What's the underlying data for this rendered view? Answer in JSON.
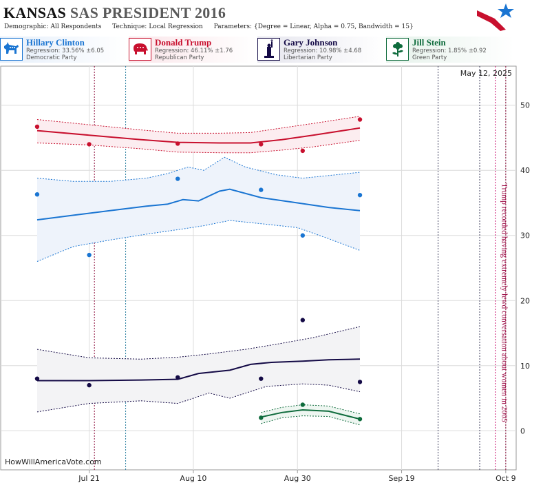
{
  "header": {
    "state": "KANSAS",
    "race": "SAS PRESIDENT 2016",
    "params": [
      {
        "key": "Demographic:",
        "value": "All Respondents"
      },
      {
        "key": "Technique:",
        "value": "Local Regression"
      },
      {
        "key": "Parameters:",
        "value": "{Degree = Linear, Alpha = 0.75, Bandwidth = 15}"
      }
    ]
  },
  "candidates": [
    {
      "name": "Hillary Clinton",
      "regression": "Regression: 33.56% ±6.05",
      "party": "Democratic Party",
      "color": "#1a75d2",
      "icon": "donkey-icon"
    },
    {
      "name": "Donald Trump",
      "regression": "Regression: 46.11% ±1.76",
      "party": "Republican Party",
      "color": "#c8102e",
      "icon": "elephant-icon"
    },
    {
      "name": "Gary Johnson",
      "regression": "Regression: 10.98% ±4.68",
      "party": "Libertarian Party",
      "color": "#140a46",
      "icon": "liberty-statue-icon"
    },
    {
      "name": "Jill Stein",
      "regression": "Regression: 1.85% ±0.92",
      "party": "Green Party",
      "color": "#0e6b3c",
      "icon": "flower-icon"
    }
  ],
  "chart_data": {
    "type": "line",
    "date_label": "May 12, 2025",
    "watermark": "HowWillAmericaVote.com",
    "annotation": "Trump recorded having extremely lewd conversation about women in 2005",
    "x_ticks": [
      {
        "date": "2016-07-21",
        "label": "Jul 21"
      },
      {
        "date": "2016-08-10",
        "label": "Aug 10"
      },
      {
        "date": "2016-08-30",
        "label": "Aug 30"
      },
      {
        "date": "2016-09-19",
        "label": "Sep 19"
      },
      {
        "date": "2016-10-09",
        "label": "Oct 9"
      }
    ],
    "xlim": [
      "2016-07-04",
      "2016-10-11"
    ],
    "ylim": [
      -6,
      56
    ],
    "y_ticks": [
      0,
      10,
      20,
      30,
      40,
      50
    ],
    "grid": true,
    "event_lines": [
      {
        "date": "2016-07-22",
        "color": "#8b0a3a"
      },
      {
        "date": "2016-07-28",
        "color": "#2a7fa0"
      },
      {
        "date": "2016-09-26",
        "color": "#3a3a5a"
      },
      {
        "date": "2016-10-04",
        "color": "#3a3a5a"
      },
      {
        "date": "2016-10-07",
        "color": "#c8106e"
      },
      {
        "date": "2016-10-09",
        "color": "#8b0a3a"
      }
    ],
    "series": [
      {
        "name": "Hillary Clinton",
        "color": "#1a75d2",
        "band_fill": "#eef3fb",
        "points": [
          [
            "2016-07-11",
            36.3
          ],
          [
            "2016-07-21",
            27.0
          ],
          [
            "2016-08-07",
            38.7
          ],
          [
            "2016-08-23",
            37.0
          ],
          [
            "2016-08-31",
            30.0
          ],
          [
            "2016-09-11",
            36.2
          ]
        ],
        "trend": [
          [
            "2016-07-11",
            32.4
          ],
          [
            "2016-07-18",
            33.1
          ],
          [
            "2016-07-25",
            33.8
          ],
          [
            "2016-08-01",
            34.5
          ],
          [
            "2016-08-05",
            34.8
          ],
          [
            "2016-08-08",
            35.5
          ],
          [
            "2016-08-11",
            35.3
          ],
          [
            "2016-08-15",
            36.8
          ],
          [
            "2016-08-17",
            37.1
          ],
          [
            "2016-08-23",
            35.8
          ],
          [
            "2016-08-30",
            35.0
          ],
          [
            "2016-09-05",
            34.3
          ],
          [
            "2016-09-11",
            33.8
          ]
        ],
        "upper": [
          [
            "2016-07-11",
            38.8
          ],
          [
            "2016-07-18",
            38.3
          ],
          [
            "2016-07-25",
            38.3
          ],
          [
            "2016-08-01",
            38.8
          ],
          [
            "2016-08-05",
            39.5
          ],
          [
            "2016-08-09",
            40.5
          ],
          [
            "2016-08-12",
            40.0
          ],
          [
            "2016-08-16",
            42.0
          ],
          [
            "2016-08-20",
            40.5
          ],
          [
            "2016-08-26",
            39.3
          ],
          [
            "2016-08-31",
            38.8
          ],
          [
            "2016-09-05",
            39.2
          ],
          [
            "2016-09-11",
            39.7
          ]
        ],
        "lower": [
          [
            "2016-07-11",
            26.0
          ],
          [
            "2016-07-18",
            28.3
          ],
          [
            "2016-07-25",
            29.3
          ],
          [
            "2016-08-01",
            30.2
          ],
          [
            "2016-08-08",
            31.0
          ],
          [
            "2016-08-12",
            31.5
          ],
          [
            "2016-08-17",
            32.3
          ],
          [
            "2016-08-23",
            31.8
          ],
          [
            "2016-08-30",
            31.2
          ],
          [
            "2016-09-05",
            29.5
          ],
          [
            "2016-09-11",
            27.7
          ]
        ]
      },
      {
        "name": "Donald Trump",
        "color": "#c8102e",
        "band_fill": "#fcedf0",
        "points": [
          [
            "2016-07-11",
            46.7
          ],
          [
            "2016-07-21",
            44.0
          ],
          [
            "2016-08-07",
            44.1
          ],
          [
            "2016-08-23",
            44.0
          ],
          [
            "2016-08-31",
            43.0
          ],
          [
            "2016-09-11",
            47.8
          ]
        ],
        "trend": [
          [
            "2016-07-11",
            46.1
          ],
          [
            "2016-07-21",
            45.4
          ],
          [
            "2016-07-31",
            44.7
          ],
          [
            "2016-08-07",
            44.3
          ],
          [
            "2016-08-15",
            44.2
          ],
          [
            "2016-08-21",
            44.2
          ],
          [
            "2016-08-27",
            44.7
          ],
          [
            "2016-09-02",
            45.4
          ],
          [
            "2016-09-11",
            46.5
          ]
        ],
        "upper": [
          [
            "2016-07-11",
            47.8
          ],
          [
            "2016-07-21",
            47.0
          ],
          [
            "2016-07-31",
            46.2
          ],
          [
            "2016-08-07",
            45.7
          ],
          [
            "2016-08-15",
            45.7
          ],
          [
            "2016-08-21",
            45.8
          ],
          [
            "2016-08-27",
            46.5
          ],
          [
            "2016-09-02",
            47.2
          ],
          [
            "2016-09-11",
            48.3
          ]
        ],
        "lower": [
          [
            "2016-07-11",
            44.2
          ],
          [
            "2016-07-21",
            43.9
          ],
          [
            "2016-07-31",
            43.3
          ],
          [
            "2016-08-07",
            42.8
          ],
          [
            "2016-08-15",
            42.7
          ],
          [
            "2016-08-21",
            42.7
          ],
          [
            "2016-08-27",
            43.1
          ],
          [
            "2016-09-02",
            43.6
          ],
          [
            "2016-09-11",
            44.6
          ]
        ]
      },
      {
        "name": "Gary Johnson",
        "color": "#140a46",
        "band_fill": "#f3f3f5",
        "points": [
          [
            "2016-07-11",
            8.0
          ],
          [
            "2016-07-21",
            7.0
          ],
          [
            "2016-08-07",
            8.2
          ],
          [
            "2016-08-23",
            8.0
          ],
          [
            "2016-08-31",
            17.0
          ],
          [
            "2016-09-11",
            7.5
          ]
        ],
        "trend": [
          [
            "2016-07-11",
            7.7
          ],
          [
            "2016-07-21",
            7.7
          ],
          [
            "2016-07-31",
            7.8
          ],
          [
            "2016-08-07",
            7.9
          ],
          [
            "2016-08-11",
            8.8
          ],
          [
            "2016-08-17",
            9.3
          ],
          [
            "2016-08-21",
            10.2
          ],
          [
            "2016-08-25",
            10.5
          ],
          [
            "2016-08-31",
            10.7
          ],
          [
            "2016-09-05",
            10.9
          ],
          [
            "2016-09-11",
            11.0
          ]
        ],
        "upper": [
          [
            "2016-07-11",
            12.5
          ],
          [
            "2016-07-21",
            11.2
          ],
          [
            "2016-07-31",
            11.0
          ],
          [
            "2016-08-07",
            11.3
          ],
          [
            "2016-08-13",
            11.8
          ],
          [
            "2016-08-20",
            12.5
          ],
          [
            "2016-08-26",
            13.3
          ],
          [
            "2016-09-02",
            14.3
          ],
          [
            "2016-09-11",
            16.0
          ]
        ],
        "lower": [
          [
            "2016-07-11",
            2.9
          ],
          [
            "2016-07-21",
            4.2
          ],
          [
            "2016-07-31",
            4.6
          ],
          [
            "2016-08-07",
            4.2
          ],
          [
            "2016-08-13",
            5.8
          ],
          [
            "2016-08-17",
            5.0
          ],
          [
            "2016-08-24",
            6.8
          ],
          [
            "2016-08-31",
            7.2
          ],
          [
            "2016-09-05",
            7.0
          ],
          [
            "2016-09-11",
            6.0
          ]
        ]
      },
      {
        "name": "Jill Stein",
        "color": "#0e6b3c",
        "band_fill": "#eef6f1",
        "points": [
          [
            "2016-08-23",
            2.0
          ],
          [
            "2016-08-31",
            4.0
          ],
          [
            "2016-09-11",
            1.8
          ]
        ],
        "trend": [
          [
            "2016-08-23",
            2.1
          ],
          [
            "2016-08-27",
            2.8
          ],
          [
            "2016-08-31",
            3.2
          ],
          [
            "2016-09-05",
            3.0
          ],
          [
            "2016-09-11",
            1.8
          ]
        ],
        "upper": [
          [
            "2016-08-23",
            2.8
          ],
          [
            "2016-08-27",
            3.6
          ],
          [
            "2016-08-31",
            4.0
          ],
          [
            "2016-09-05",
            3.8
          ],
          [
            "2016-09-11",
            2.6
          ]
        ],
        "lower": [
          [
            "2016-08-23",
            1.1
          ],
          [
            "2016-08-27",
            2.0
          ],
          [
            "2016-08-31",
            2.3
          ],
          [
            "2016-09-05",
            2.2
          ],
          [
            "2016-09-11",
            0.9
          ]
        ]
      }
    ]
  }
}
